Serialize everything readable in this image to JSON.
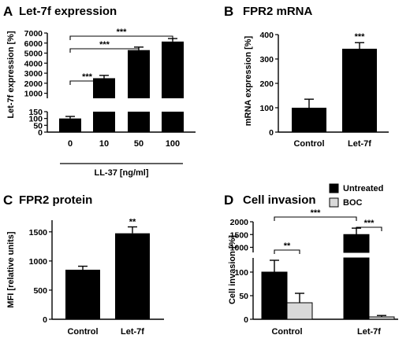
{
  "colors": {
    "untreated": "#000000",
    "boc": "#d9d9d9",
    "axis": "#000000",
    "bracket": "#000000"
  },
  "chart_data": [
    {
      "panel": "A",
      "title": "Let-7f expression",
      "type": "bar",
      "ylabel": "Let-7f expression [%]",
      "xlabel": "LL-37 [ng/ml]",
      "categories": [
        "0",
        "10",
        "50",
        "100"
      ],
      "values": [
        100,
        2500,
        5300,
        6150
      ],
      "errors": [
        15,
        280,
        300,
        300
      ],
      "axis_break": {
        "lower": [
          0,
          150
        ],
        "upper": [
          500,
          7000
        ]
      },
      "yticks_lower": [
        "0",
        "50",
        "100",
        "150"
      ],
      "yticks_upper": [
        "1000",
        "2000",
        "3000",
        "4000",
        "5000",
        "6000",
        "7000"
      ],
      "significance": [
        {
          "from": 0,
          "to": 1,
          "label": "***"
        },
        {
          "from": 0,
          "to": 2,
          "label": "***"
        },
        {
          "from": 0,
          "to": 3,
          "label": "***"
        }
      ]
    },
    {
      "panel": "B",
      "title": "FPR2 mRNA",
      "type": "bar",
      "ylabel": "mRNA expression [%]",
      "categories": [
        "Control",
        "Let-7f"
      ],
      "values": [
        100,
        342
      ],
      "errors": [
        35,
        25
      ],
      "ylim": [
        0,
        400
      ],
      "yticks": [
        "0",
        "100",
        "200",
        "300",
        "400"
      ],
      "significance": [
        {
          "bar": 1,
          "label": "***"
        }
      ]
    },
    {
      "panel": "C",
      "title": "FPR2 protein",
      "type": "bar",
      "ylabel": "MFI [relative units]",
      "categories": [
        "Control",
        "Let-7f"
      ],
      "values": [
        850,
        1475
      ],
      "errors": [
        60,
        110
      ],
      "ylim": [
        0,
        1700
      ],
      "yticks": [
        "0",
        "500",
        "1000",
        "1500"
      ],
      "significance": [
        {
          "bar": 1,
          "label": "**"
        }
      ]
    },
    {
      "panel": "D",
      "title": "Cell invasion",
      "type": "bar",
      "ylabel": "Cell invasion [%]",
      "categories": [
        "Control",
        "Let-7f"
      ],
      "series": [
        {
          "name": "Untreated",
          "values": [
            100,
            1500
          ],
          "errors": [
            25,
            250
          ]
        },
        {
          "name": "BOC",
          "values": [
            35,
            5
          ],
          "errors": [
            20,
            3
          ]
        }
      ],
      "axis_break": {
        "lower": [
          0,
          130
        ],
        "upper": [
          800,
          2000
        ]
      },
      "yticks_lower": [
        "0",
        "50",
        "100"
      ],
      "yticks_upper": [
        "1000",
        "1500",
        "2000"
      ],
      "legend": "top-right",
      "significance": [
        {
          "label": "**",
          "between": "Control Untreated vs Control BOC"
        },
        {
          "label": "***",
          "between": "Let-7f Untreated vs Let-7f BOC"
        },
        {
          "label": "***",
          "between": "Control Untreated vs Let-7f Untreated"
        }
      ]
    }
  ]
}
